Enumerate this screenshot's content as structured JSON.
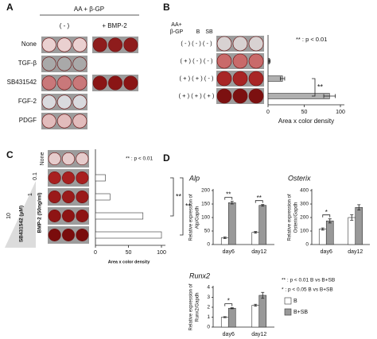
{
  "panel_labels": [
    "A",
    "B",
    "C",
    "D"
  ],
  "panel_a": {
    "group_header": "AA + β-GP",
    "columns": [
      "( - )",
      "+ BMP-2"
    ],
    "rows": [
      "None",
      "TGF-β",
      "SB431542",
      "FGF-2",
      "PDGF"
    ]
  },
  "chart_data": [
    {
      "type": "hbar",
      "header": [
        "AA+",
        "β-GP",
        "B",
        "SB"
      ],
      "categories": [
        "( - ) ( - ) ( - )",
        "( + ) ( - ) ( - )",
        "( + ) ( + ) ( - )",
        "( + ) ( + ) ( + )"
      ],
      "values": [
        0,
        2,
        20,
        85
      ],
      "errors": [
        0,
        1,
        3,
        8
      ],
      "color": "#b0b0b0",
      "xlim": [
        0,
        100
      ],
      "xticks": [
        0,
        50,
        100
      ],
      "xlabel": "Area x color density",
      "note": "** : p < 0.01",
      "annotations": [
        "**"
      ]
    },
    {
      "type": "hbar",
      "group_labels": [
        "BMP-2 (50ng/ml)",
        "SB431542 (μM)"
      ],
      "categories": [
        "None",
        null,
        "0.1",
        "1",
        "10"
      ],
      "values": [
        0,
        15,
        22,
        72,
        100
      ],
      "color": "#ffffff",
      "xlim": [
        0,
        100
      ],
      "xticks": [
        0,
        50,
        100
      ],
      "xlabel": "Area x color density",
      "note": "** : p < 0.01",
      "annotations": [
        "**",
        "**"
      ]
    },
    {
      "type": "bar",
      "title": "Alp",
      "ylabel": [
        "Relative expression of",
        "Alp/Gapdh"
      ],
      "categories": [
        "day6",
        "day12"
      ],
      "series": [
        {
          "color": "#ffffff",
          "values": [
            25,
            45
          ],
          "errors": [
            3,
            3
          ]
        },
        {
          "color": "#999999",
          "values": [
            155,
            145
          ],
          "errors": [
            5,
            3
          ]
        }
      ],
      "ylim": [
        0,
        200
      ],
      "yticks": [
        0,
        50,
        100,
        150,
        200
      ],
      "annotations": [
        "**",
        "**"
      ]
    },
    {
      "type": "bar",
      "title": "Osterix",
      "ylabel": [
        "Relative expression of",
        "Osterix/Gapdh"
      ],
      "categories": [
        "day6",
        "day12"
      ],
      "series": [
        {
          "color": "#ffffff",
          "values": [
            115,
            200
          ],
          "errors": [
            8,
            20
          ]
        },
        {
          "color": "#999999",
          "values": [
            175,
            275
          ],
          "errors": [
            15,
            20
          ]
        }
      ],
      "ylim": [
        0,
        400
      ],
      "yticks": [
        0,
        100,
        200,
        300,
        400
      ],
      "annotations": [
        "*",
        null
      ]
    },
    {
      "type": "bar",
      "title": "Runx2",
      "ylabel": [
        "Relative expression of",
        "Runx2/Gapdh"
      ],
      "categories": [
        "day6",
        "day12"
      ],
      "series": [
        {
          "name": "B",
          "color": "#ffffff",
          "values": [
            1.0,
            2.2
          ],
          "errors": [
            0.05,
            0.1
          ]
        },
        {
          "name": "B+SB",
          "color": "#999999",
          "values": [
            1.9,
            3.2
          ],
          "errors": [
            0.05,
            0.3
          ]
        }
      ],
      "ylim": [
        0,
        4
      ],
      "yticks": [
        0,
        1,
        2,
        3,
        4
      ],
      "annotations": [
        "*",
        null
      ],
      "notes": [
        "** : p < 0.01  B vs B+SB",
        "* : p < 0.05  B vs B+SB"
      ]
    }
  ]
}
